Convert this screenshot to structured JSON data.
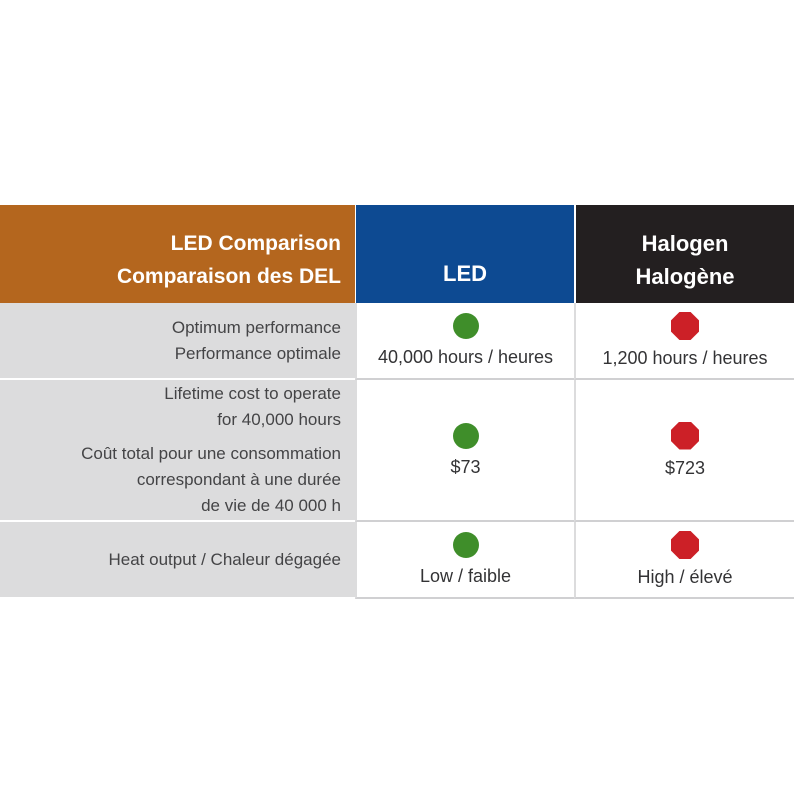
{
  "header": {
    "label_line1": "LED Comparison",
    "label_line2": "Comparaison des DEL",
    "led": "LED",
    "halogen_line1": "Halogen",
    "halogen_line2": "Halogène"
  },
  "rows": [
    {
      "label_lines": [
        "Optimum performance",
        "Performance optimale"
      ],
      "led_value": "40,000 hours / heures",
      "halogen_value": "1,200 hours / heures"
    },
    {
      "label_lines": [
        "Lifetime cost to operate",
        "for 40,000 hours",
        "Coût total pour une consommation",
        "correspondant à une durée",
        "de vie de 40 000 h"
      ],
      "led_value": "$73",
      "halogen_value": "$723"
    },
    {
      "label_lines": [
        "Heat output / Chaleur dégagée"
      ],
      "led_value": "Low / faible",
      "halogen_value": "High / élevé"
    }
  ],
  "icons": {
    "led_indicator": "green-circle-icon",
    "halogen_indicator": "red-stop-octagon-icon"
  },
  "colors": {
    "label_header": "#b4661e",
    "led_header": "#0d4a92",
    "halogen_header": "#231f20",
    "good": "#3f8e2a",
    "bad": "#cc2027"
  }
}
